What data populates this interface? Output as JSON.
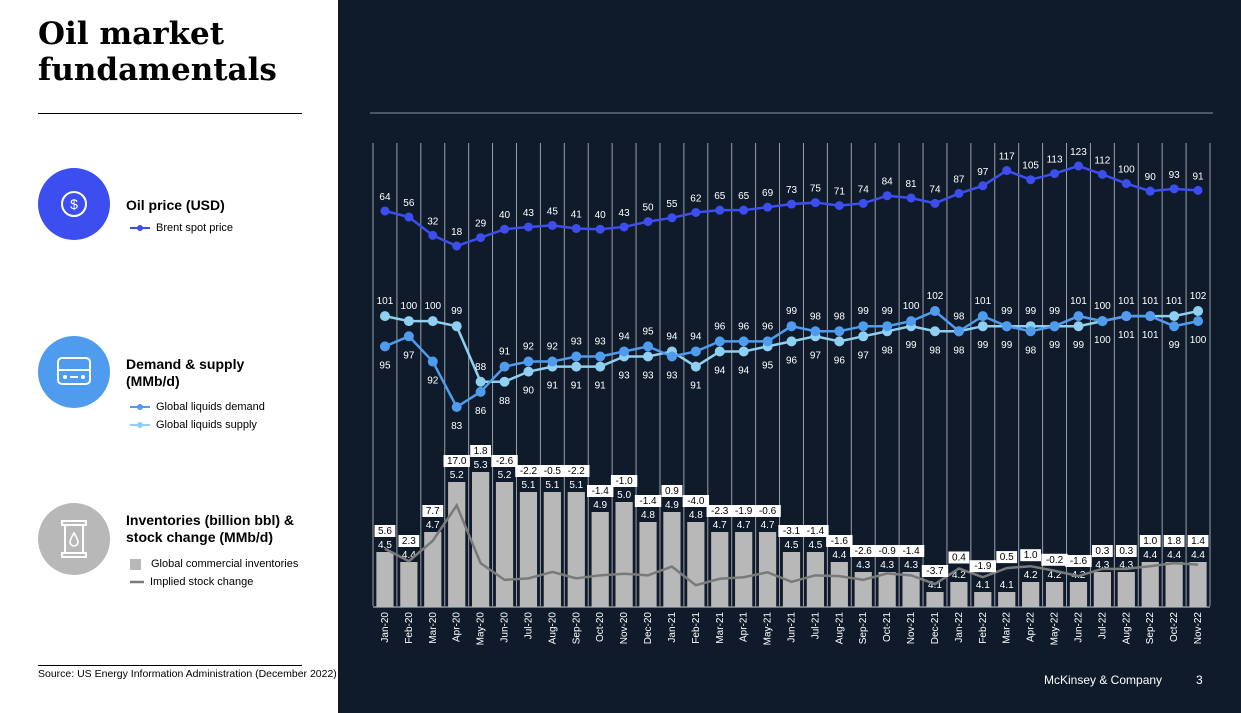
{
  "title": "Oil market fundamentals",
  "sections": {
    "price": {
      "title": "Oil price (USD)",
      "legend": "Brent spot price",
      "icon": "dollar-icon"
    },
    "demand": {
      "title": "Demand & supply (MMb/d)",
      "legend_demand": "Global liquids demand",
      "legend_supply": "Global liquids supply",
      "icon": "car-icon"
    },
    "inventories": {
      "title": "Inventories (billion bbl) & stock change (MMb/d)",
      "legend_inv": "Global commercial inventories",
      "legend_stock": "Implied stock change",
      "icon": "barrel-icon"
    }
  },
  "source": "Source: US Energy Information Administration (December 2022)",
  "footer": {
    "brand": "McKinsey & Company",
    "page": "3"
  },
  "colors": {
    "bg": "#0f1b2b",
    "brent": "#3d4ef0",
    "demand": "#4f9cef",
    "supply": "#8fd0f2",
    "bars": "#b8b8b8",
    "stock": "#7a7a7a"
  },
  "chart_data": {
    "type": "line+bar",
    "categories": [
      "Jan-20",
      "Feb-20",
      "Mar-20",
      "Apr-20",
      "May-20",
      "Jun-20",
      "Jul-20",
      "Aug-20",
      "Sep-20",
      "Oct-20",
      "Nov-20",
      "Dec-20",
      "Jan-21",
      "Feb-21",
      "Mar-21",
      "Apr-21",
      "May-21",
      "Jun-21",
      "Jul-21",
      "Aug-21",
      "Sep-21",
      "Oct-21",
      "Nov-21",
      "Dec-21",
      "Jan-22",
      "Feb-22",
      "Mar-22",
      "Apr-22",
      "May-22",
      "Jun-22",
      "Jul-22",
      "Aug-22",
      "Sep-22",
      "Oct-22",
      "Nov-22"
    ],
    "series": [
      {
        "name": "Brent spot price",
        "values": [
          64,
          56,
          32,
          18,
          29,
          40,
          43,
          45,
          41,
          40,
          43,
          50,
          55,
          62,
          65,
          65,
          69,
          73,
          75,
          71,
          74,
          84,
          81,
          74,
          87,
          97,
          117,
          105,
          113,
          123,
          112,
          100,
          90,
          93,
          91
        ]
      },
      {
        "name": "Global liquids demand",
        "values": [
          95,
          97,
          92,
          83,
          86,
          91,
          92,
          92,
          93,
          93,
          94,
          95,
          93,
          94,
          96,
          96,
          96,
          99,
          98,
          98,
          99,
          99,
          100,
          102,
          98,
          101,
          99,
          98,
          99,
          101,
          100,
          101,
          101,
          99,
          100
        ]
      },
      {
        "name": "Global liquids supply",
        "values": [
          101,
          100,
          100,
          99,
          88,
          88,
          90,
          91,
          91,
          91,
          93,
          93,
          94,
          91,
          94,
          94,
          95,
          96,
          97,
          96,
          97,
          98,
          99,
          98,
          98,
          99,
          99,
          99,
          99,
          99,
          100,
          101,
          101,
          101,
          102
        ]
      },
      {
        "name": "Global commercial inventories",
        "values": [
          4.5,
          4.4,
          4.7,
          5.2,
          5.3,
          5.2,
          5.1,
          5.1,
          5.1,
          4.9,
          5.0,
          4.8,
          4.9,
          4.8,
          4.7,
          4.7,
          4.7,
          4.5,
          4.5,
          4.4,
          4.3,
          4.3,
          4.3,
          4.1,
          4.2,
          4.1,
          4.1,
          4.2,
          4.2,
          4.2,
          4.3,
          4.3,
          4.4,
          4.4,
          4.4
        ]
      },
      {
        "name": "Implied stock change",
        "values": [
          5.6,
          2.3,
          7.7,
          17.0,
          1.8,
          -2.6,
          -2.2,
          -0.5,
          -2.2,
          -1.4,
          -1.0,
          -1.4,
          0.9,
          -4.0,
          -2.3,
          -1.9,
          -0.6,
          -3.1,
          -1.4,
          -1.6,
          -2.6,
          -0.9,
          -1.4,
          -3.7,
          0.4,
          -1.9,
          0.5,
          1.0,
          -0.2,
          -1.6,
          0.3,
          0.3,
          1.0,
          1.8,
          1.4
        ]
      }
    ]
  }
}
